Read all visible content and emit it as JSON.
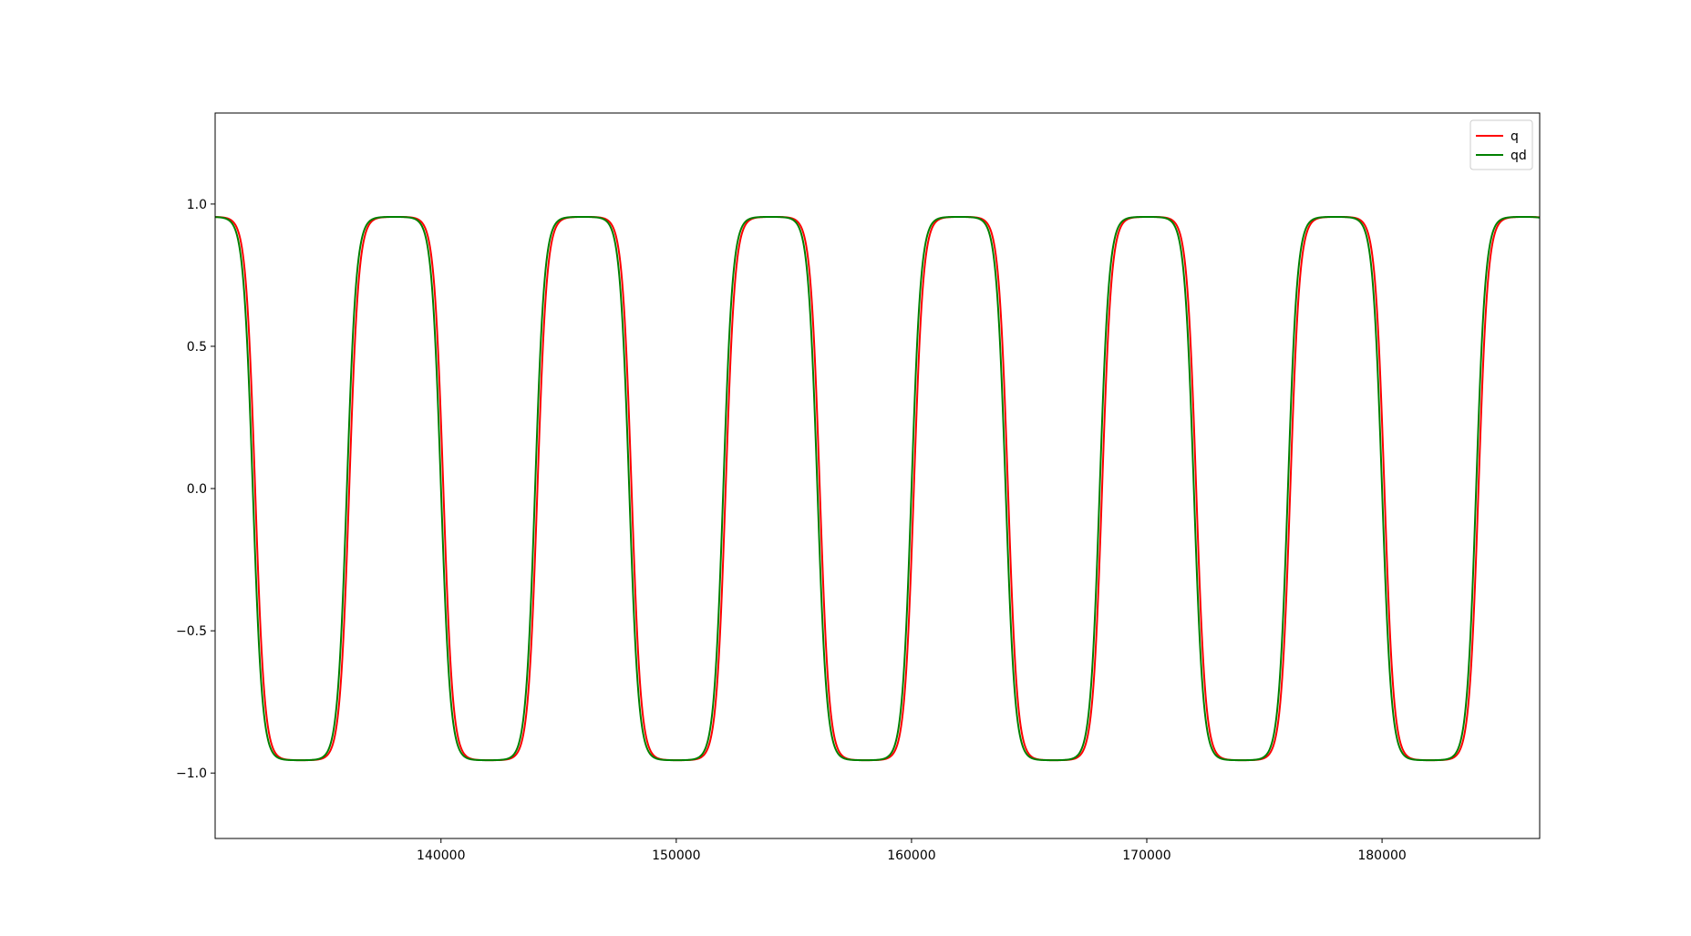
{
  "chart_data": {
    "type": "line",
    "title": "",
    "xlabel": "",
    "ylabel": "",
    "xlim": [
      130400,
      186700
    ],
    "ylim": [
      -1.23,
      1.32
    ],
    "x_ticks": [
      140000,
      150000,
      160000,
      170000,
      180000
    ],
    "x_tick_labels": [
      "140000",
      "150000",
      "160000",
      "170000",
      "180000"
    ],
    "y_ticks": [
      1.0,
      0.5,
      0.0,
      -0.5,
      -1.0
    ],
    "y_tick_labels": [
      "1.0",
      "0.5",
      "0.0",
      "−0.5",
      "−1.0"
    ],
    "grid": false,
    "legend": {
      "position": "upper right",
      "entries": [
        "q",
        "qd"
      ]
    },
    "series": [
      {
        "name": "q",
        "color": "#ff0000",
        "model": "periodic square-like wave",
        "period": 8000,
        "amplitude": 0.955,
        "first_falling_edge_x": 132100,
        "first_rising_edge_x": 136100
      },
      {
        "name": "qd",
        "color": "#008000",
        "model": "periodic square-like wave",
        "period": 8000,
        "amplitude": 0.955,
        "first_falling_edge_x": 132000,
        "first_rising_edge_x": 136000
      }
    ]
  }
}
